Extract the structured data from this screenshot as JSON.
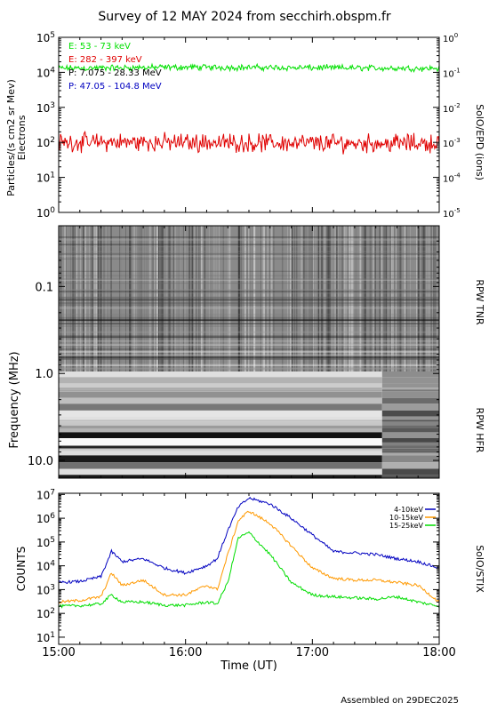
{
  "title": "Survey of 12 MAY 2024 from secchirh.obspm.fr",
  "footer": "Assembled on 29DEC2025",
  "xaxis": {
    "label": "Time (UT)",
    "ticks": [
      "15:00",
      "16:00",
      "17:00",
      "18:00"
    ]
  },
  "panels": {
    "epd": {
      "ylabel": "Particles/(s cm2 sr Mev)",
      "ylabel2": "Electrons",
      "right_label": "SolO/EPD (ions)",
      "left_ticks": [
        {
          "base": "10",
          "exp": "0"
        },
        {
          "base": "10",
          "exp": "1"
        },
        {
          "base": "10",
          "exp": "2"
        },
        {
          "base": "10",
          "exp": "3"
        },
        {
          "base": "10",
          "exp": "4"
        },
        {
          "base": "10",
          "exp": "5"
        }
      ],
      "right_ticks": [
        {
          "base": "10",
          "exp": "-5"
        },
        {
          "base": "10",
          "exp": "-4"
        },
        {
          "base": "10",
          "exp": "-3"
        },
        {
          "base": "10",
          "exp": "-2"
        },
        {
          "base": "10",
          "exp": "-1"
        },
        {
          "base": "10",
          "exp": "0"
        }
      ],
      "legend": [
        {
          "label": "E: 53 - 73 keV",
          "color": "#00e000"
        },
        {
          "label": "E: 282 - 397 keV",
          "color": "#e00000"
        },
        {
          "label": "P: 7.075 - 28.33 MeV",
          "color": "#000000"
        },
        {
          "label": "P: 47.05 - 104.8 MeV",
          "color": "#0000c0"
        }
      ]
    },
    "rpw": {
      "ylabel": "Frequency (MHz)",
      "tnr_label": "RPW TNR",
      "hfr_label": "RPW HFR",
      "ticks": [
        "0.1",
        "1.0",
        "10.0"
      ]
    },
    "stix": {
      "ylabel": "COUNTS",
      "right_label": "SolO/STIX",
      "ticks": [
        {
          "base": "10",
          "exp": "1"
        },
        {
          "base": "10",
          "exp": "2"
        },
        {
          "base": "10",
          "exp": "3"
        },
        {
          "base": "10",
          "exp": "4"
        },
        {
          "base": "10",
          "exp": "5"
        },
        {
          "base": "10",
          "exp": "6"
        },
        {
          "base": "10",
          "exp": "7"
        }
      ],
      "legend": [
        {
          "label": "4-10keV",
          "color": "#0000c0"
        },
        {
          "label": "10-15keV",
          "color": "#ff9900"
        },
        {
          "label": "15-25keV",
          "color": "#00dd00"
        }
      ]
    }
  },
  "chart_data": [
    {
      "type": "line",
      "name": "SolO/EPD",
      "x_range": [
        "15:00",
        "18:00"
      ],
      "ylim": [
        1,
        100000
      ],
      "y_scale": "log",
      "series": [
        {
          "name": "E: 53 - 73 keV",
          "x": [
            "15:00",
            "16:00",
            "17:00",
            "18:00"
          ],
          "values": [
            13000,
            14000,
            13500,
            13000
          ]
        },
        {
          "name": "E: 282 - 397 keV",
          "x": [
            "15:00",
            "16:00",
            "17:00",
            "18:00"
          ],
          "values": [
            100,
            100,
            95,
            95
          ]
        }
      ]
    },
    {
      "type": "heatmap",
      "name": "RPW TNR / HFR",
      "x_range": [
        "15:00",
        "18:00"
      ],
      "y_range_mhz": [
        0.02,
        16
      ],
      "y_scale": "log"
    },
    {
      "type": "line",
      "name": "SolO/STIX",
      "x_range": [
        "15:00",
        "18:00"
      ],
      "ylim": [
        5,
        10000000
      ],
      "y_scale": "log",
      "series": [
        {
          "name": "4-10keV",
          "x": [
            "15:00",
            "15:10",
            "15:20",
            "15:25",
            "15:30",
            "15:40",
            "15:50",
            "16:00",
            "16:10",
            "16:15",
            "16:20",
            "16:25",
            "16:30",
            "16:40",
            "16:50",
            "17:00",
            "17:10",
            "17:20",
            "17:30",
            "17:40",
            "17:50",
            "18:00"
          ],
          "values": [
            2000,
            2200,
            3500,
            40000,
            15000,
            20000,
            8000,
            5000,
            10000,
            20000,
            300000,
            3000000,
            7000000,
            4000000,
            1000000,
            200000,
            40000,
            35000,
            30000,
            20000,
            15000,
            8000
          ]
        },
        {
          "name": "10-15keV",
          "x": [
            "15:00",
            "15:10",
            "15:20",
            "15:25",
            "15:30",
            "15:40",
            "15:50",
            "16:00",
            "16:10",
            "16:15",
            "16:20",
            "16:25",
            "16:30",
            "16:40",
            "16:50",
            "17:00",
            "17:10",
            "17:20",
            "17:30",
            "17:40",
            "17:50",
            "18:00"
          ],
          "values": [
            300,
            350,
            500,
            5000,
            1500,
            2500,
            600,
            600,
            1500,
            1000,
            30000,
            800000,
            2000000,
            600000,
            70000,
            8000,
            3000,
            2500,
            2500,
            2000,
            1500,
            300
          ]
        },
        {
          "name": "15-25keV",
          "x": [
            "15:00",
            "15:10",
            "15:20",
            "15:25",
            "15:30",
            "15:40",
            "15:50",
            "16:00",
            "16:10",
            "16:15",
            "16:20",
            "16:25",
            "16:30",
            "16:40",
            "16:50",
            "17:00",
            "17:10",
            "17:20",
            "17:30",
            "17:40",
            "17:50",
            "18:00"
          ],
          "values": [
            200,
            210,
            250,
            600,
            300,
            300,
            220,
            220,
            300,
            250,
            2000,
            150000,
            250000,
            30000,
            2000,
            600,
            500,
            450,
            400,
            500,
            300,
            200
          ]
        }
      ]
    }
  ]
}
